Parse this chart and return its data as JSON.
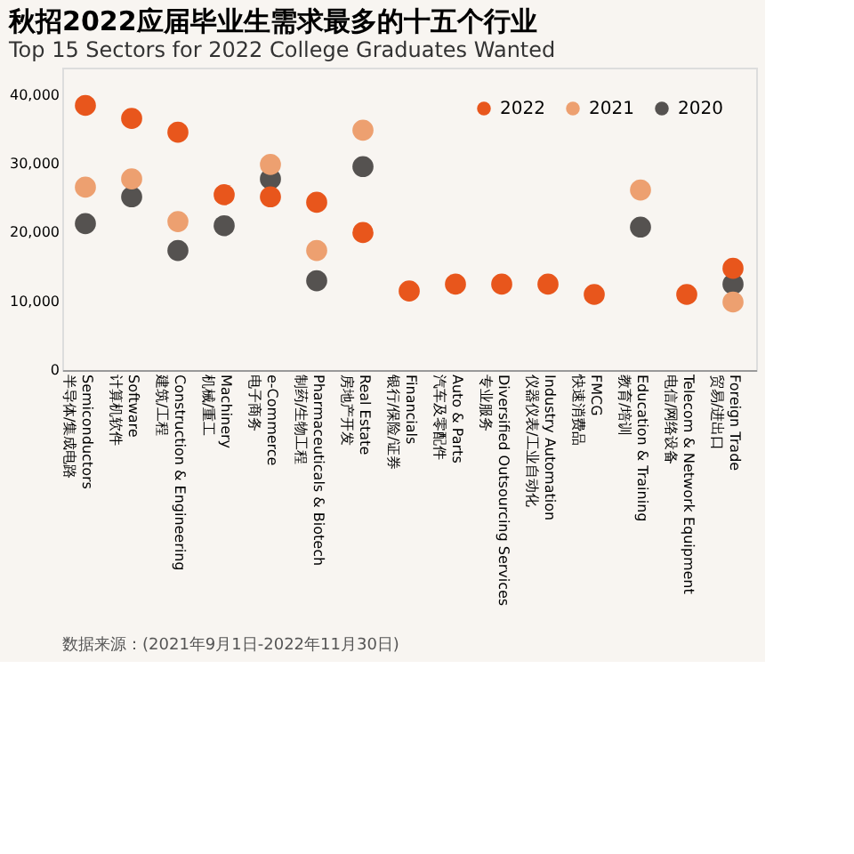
{
  "chart_data": {
    "type": "scatter",
    "title": "秋招2022应届毕业生需求最多的十五个行业",
    "subtitle": "Top 15 Sectors for 2022 College Graduates Wanted",
    "categories": [
      "Semiconductors\n半导体/集成电路",
      "Software\n计算机软件",
      "Construction & Engineering\n建筑/工程",
      "Machinery\n机械/重工",
      "e-Commerce\n电子商务",
      "Pharmaceuticals & Biotech\n制药/生物工程",
      "Real Estate\n房地产开发",
      "Financials\n银行/保险/证券",
      "Auto & Parts\n汽车及零配件",
      "Diversified Outsourcing Services\n专业服务",
      "Industry Automation\n仪器仪表/工业自动化",
      "FMCG\n快速消费品",
      "Education & Training\n教育/培训",
      "Telecom & Network Equipment\n电信/网络设备",
      "Foreign Trade\n贸易/进出口"
    ],
    "series": [
      {
        "name": "2022",
        "color": "#e8561c",
        "values": [
          38500,
          36600,
          34600,
          25500,
          25200,
          24400,
          20000,
          11500,
          12500,
          12500,
          12500,
          11000,
          null,
          11000,
          14800
        ]
      },
      {
        "name": "2021",
        "color": "#eda070",
        "values": [
          26600,
          27800,
          21600,
          null,
          29900,
          17400,
          34900,
          null,
          null,
          null,
          null,
          null,
          26200,
          null,
          9900
        ]
      },
      {
        "name": "2020",
        "color": "#555250",
        "values": [
          21300,
          25200,
          17400,
          21000,
          27800,
          13000,
          29600,
          null,
          null,
          null,
          null,
          null,
          20800,
          null,
          12500
        ]
      }
    ],
    "ylim": [
      0,
      44000
    ],
    "yticks": [
      {
        "value": 0,
        "label": "0"
      },
      {
        "value": 10000,
        "label": "10,000"
      },
      {
        "value": 20000,
        "label": "20,000"
      },
      {
        "value": 30000,
        "label": "30,000"
      },
      {
        "value": 40000,
        "label": "40,000"
      }
    ],
    "grid": false,
    "legend": "top right",
    "marker": "circle",
    "annotations": [
      "数据来源：(2021年9月1日-2022年11月30日)"
    ]
  }
}
